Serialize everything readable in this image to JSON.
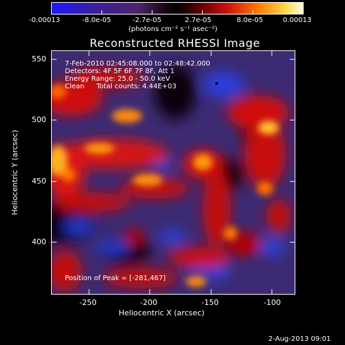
{
  "colorbar": {
    "ticks": [
      "-0.00013",
      "-8.0e-05",
      "-2.7e-05",
      "2.7e-05",
      "8.0e-05",
      "0.00013"
    ],
    "units": "(photons cm⁻² s⁻¹ asec⁻²)"
  },
  "plot": {
    "title": "Reconstructed RHESSI Image",
    "xlabel": "Heliocentric X (arcsec)",
    "ylabel": "Heliocentric Y (arcsec)",
    "xticks": [
      "-250",
      "-200",
      "-150",
      "-100"
    ],
    "yticks": [
      "550",
      "500",
      "450",
      "400"
    ]
  },
  "info": {
    "time_range": "7-Feb-2010 02:45:08.000 to 02:48:42.000",
    "detectors": "Detectors: 4F 5F 6F 7F 8F, Att 1",
    "energy": "Energy Range: 25.0 - 50.0 keV",
    "method": "Clean",
    "counts": "Total counts: 4.44E+03"
  },
  "peak": "Position of Peak = [-281,467]",
  "footer_date": "2-Aug-2013 09:01",
  "colors": {
    "axis": "#ffffff",
    "background": "#000000"
  }
}
